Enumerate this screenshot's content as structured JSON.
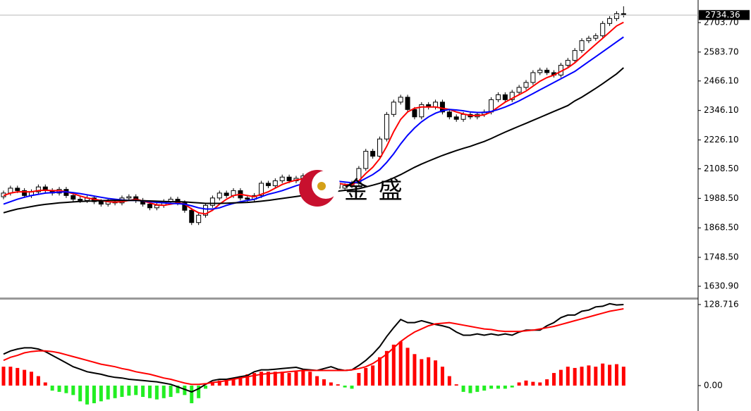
{
  "chart_data": [
    {
      "type": "candlestick",
      "watermark": "金 盛",
      "up_color": "#ffffff",
      "down_color": "#000000",
      "outline_color": "#000000",
      "ylim": [
        1588,
        2795.5
      ],
      "yticks": [
        {
          "value": 1630.9,
          "label": "1630.90"
        },
        {
          "value": 1748.5,
          "label": "1748.50"
        },
        {
          "value": 1868.5,
          "label": "1868.50"
        },
        {
          "value": 1988.5,
          "label": "1988.50"
        },
        {
          "value": 2108.5,
          "label": "2108.50"
        },
        {
          "value": 2226.1,
          "label": "2226.10"
        },
        {
          "value": 2346.1,
          "label": "2346.10"
        },
        {
          "value": 2466.1,
          "label": "2466.10"
        },
        {
          "value": 2583.7,
          "label": "2583.70"
        },
        {
          "value": 2703.7,
          "label": "2703.70"
        }
      ],
      "open": [
        1995,
        2010,
        2030,
        2020,
        2000,
        2015,
        2035,
        2020,
        2010,
        2025,
        2000,
        1985,
        1980,
        1990,
        1975,
        1965,
        1975,
        1970,
        1990,
        1995,
        1980,
        1965,
        1950,
        1960,
        1975,
        1985,
        1970,
        1940,
        1890,
        1920,
        1960,
        1990,
        2010,
        2000,
        2020,
        1990,
        1985,
        2000,
        2050,
        2040,
        2060,
        2075,
        2060,
        2070,
        2080,
        2055,
        2040,
        2060,
        2050,
        2030,
        2040,
        2050,
        2110,
        2180,
        2160,
        2230,
        2330,
        2380,
        2400,
        2350,
        2320,
        2370,
        2360,
        2380,
        2340,
        2320,
        2310,
        2330,
        2320,
        2330,
        2340,
        2390,
        2410,
        2390,
        2420,
        2440,
        2460,
        2500,
        2510,
        2500,
        2490,
        2530,
        2550,
        2590,
        2630,
        2640,
        2650,
        2700,
        2720,
        2740
      ],
      "high": [
        2020,
        2040,
        2040,
        2030,
        2025,
        2045,
        2045,
        2030,
        2035,
        2035,
        2010,
        1995,
        2000,
        2000,
        1985,
        1985,
        1985,
        2000,
        2005,
        2005,
        1990,
        1975,
        1970,
        1985,
        1995,
        1995,
        1980,
        1950,
        1930,
        1970,
        2000,
        2020,
        2020,
        2030,
        2030,
        2000,
        2010,
        2060,
        2060,
        2070,
        2085,
        2085,
        2080,
        2090,
        2090,
        2065,
        2070,
        2070,
        2060,
        2050,
        2060,
        2120,
        2190,
        2190,
        2240,
        2340,
        2390,
        2410,
        2410,
        2360,
        2380,
        2380,
        2390,
        2390,
        2350,
        2330,
        2340,
        2340,
        2340,
        2350,
        2400,
        2420,
        2420,
        2430,
        2450,
        2470,
        2510,
        2520,
        2520,
        2510,
        2540,
        2560,
        2600,
        2640,
        2650,
        2660,
        2710,
        2730,
        2750,
        2770
      ],
      "low": [
        1985,
        2000,
        2010,
        1990,
        1990,
        2005,
        2010,
        2000,
        2000,
        1990,
        1975,
        1970,
        1970,
        1965,
        1955,
        1955,
        1960,
        1960,
        1980,
        1970,
        1955,
        1940,
        1940,
        1950,
        1965,
        1960,
        1930,
        1880,
        1880,
        1910,
        1950,
        1980,
        1990,
        1990,
        1980,
        1975,
        1975,
        1990,
        2030,
        2030,
        2050,
        2050,
        2050,
        2060,
        2045,
        2030,
        2030,
        2040,
        2020,
        2020,
        2030,
        2040,
        2100,
        2150,
        2150,
        2220,
        2320,
        2370,
        2340,
        2310,
        2310,
        2350,
        2350,
        2330,
        2310,
        2300,
        2300,
        2310,
        2310,
        2320,
        2330,
        2380,
        2380,
        2380,
        2410,
        2430,
        2450,
        2490,
        2490,
        2480,
        2480,
        2520,
        2540,
        2580,
        2620,
        2630,
        2640,
        2690,
        2710,
        2725
      ],
      "close": [
        2010,
        2030,
        2020,
        2000,
        2015,
        2035,
        2020,
        2010,
        2025,
        2000,
        1985,
        1980,
        1990,
        1975,
        1965,
        1975,
        1970,
        1990,
        1995,
        1980,
        1965,
        1950,
        1960,
        1975,
        1985,
        1970,
        1940,
        1890,
        1920,
        1960,
        1990,
        2010,
        2000,
        2020,
        1990,
        1985,
        2000,
        2050,
        2040,
        2060,
        2075,
        2060,
        2070,
        2080,
        2055,
        2040,
        2060,
        2050,
        2030,
        2040,
        2050,
        2110,
        2180,
        2160,
        2230,
        2330,
        2380,
        2400,
        2350,
        2320,
        2370,
        2360,
        2380,
        2340,
        2320,
        2310,
        2330,
        2320,
        2330,
        2340,
        2390,
        2410,
        2390,
        2420,
        2440,
        2460,
        2500,
        2510,
        2500,
        2490,
        2530,
        2550,
        2590,
        2630,
        2640,
        2650,
        2700,
        2720,
        2740,
        2734.36
      ],
      "series": [
        {
          "color": "#ff0000",
          "values": [
            2000,
            2010,
            2015,
            2015,
            2015,
            2020,
            2022,
            2020,
            2020,
            2015,
            2008,
            1998,
            1990,
            1985,
            1980,
            1975,
            1973,
            1975,
            1980,
            1985,
            1978,
            1970,
            1962,
            1960,
            1965,
            1970,
            1965,
            1945,
            1930,
            1925,
            1940,
            1965,
            1985,
            2000,
            2005,
            2000,
            1995,
            2005,
            2015,
            2030,
            2045,
            2055,
            2063,
            2068,
            2065,
            2060,
            2058,
            2055,
            2050,
            2045,
            2043,
            2060,
            2090,
            2115,
            2150,
            2200,
            2260,
            2310,
            2340,
            2355,
            2360,
            2360,
            2360,
            2355,
            2350,
            2340,
            2332,
            2326,
            2325,
            2328,
            2340,
            2360,
            2380,
            2395,
            2410,
            2425,
            2445,
            2465,
            2480,
            2490,
            2505,
            2520,
            2540,
            2565,
            2590,
            2615,
            2640,
            2665,
            2690,
            2705
          ]
        },
        {
          "color": "#0000ff",
          "values": [
            1965,
            1975,
            1985,
            1993,
            2000,
            2005,
            2010,
            2012,
            2014,
            2015,
            2012,
            2008,
            2003,
            1998,
            1993,
            1988,
            1985,
            1982,
            1980,
            1980,
            1978,
            1975,
            1972,
            1970,
            1968,
            1967,
            1965,
            1958,
            1950,
            1945,
            1945,
            1950,
            1960,
            1968,
            1975,
            1980,
            1985,
            1995,
            2005,
            2012,
            2020,
            2030,
            2040,
            2048,
            2055,
            2058,
            2060,
            2060,
            2058,
            2055,
            2052,
            2055,
            2070,
            2085,
            2105,
            2135,
            2170,
            2210,
            2245,
            2275,
            2300,
            2320,
            2335,
            2345,
            2350,
            2348,
            2345,
            2340,
            2338,
            2338,
            2342,
            2350,
            2360,
            2372,
            2385,
            2400,
            2415,
            2430,
            2445,
            2460,
            2475,
            2490,
            2505,
            2525,
            2545,
            2565,
            2585,
            2605,
            2625,
            2645
          ]
        },
        {
          "color": "#000000",
          "values": [
            1930,
            1938,
            1945,
            1950,
            1955,
            1960,
            1964,
            1967,
            1970,
            1972,
            1974,
            1976,
            1977,
            1978,
            1979,
            1980,
            1980,
            1980,
            1980,
            1980,
            1979,
            1978,
            1977,
            1976,
            1975,
            1975,
            1974,
            1972,
            1970,
            1968,
            1968,
            1968,
            1969,
            1970,
            1971,
            1972,
            1974,
            1977,
            1980,
            1984,
            1988,
            1992,
            1996,
            2000,
            2004,
            2008,
            2012,
            2015,
            2018,
            2021,
            2024,
            2028,
            2035,
            2042,
            2050,
            2060,
            2072,
            2085,
            2100,
            2115,
            2128,
            2140,
            2152,
            2163,
            2173,
            2183,
            2192,
            2200,
            2210,
            2220,
            2232,
            2245,
            2258,
            2270,
            2282,
            2294,
            2306,
            2318,
            2330,
            2342,
            2354,
            2366,
            2385,
            2400,
            2418,
            2436,
            2455,
            2475,
            2495,
            2520
          ]
        }
      ]
    },
    {
      "type": "macd",
      "positive_color": "#ff0000",
      "negative_color": "#22ee22",
      "ylim": [
        -37,
        135.4
      ],
      "yticks": [
        128.716,
        {
          "value": 0,
          "label": "0.00"
        }
      ],
      "values": [
        30,
        30,
        28,
        25,
        22,
        15,
        5,
        -8,
        -10,
        -12,
        -15,
        -25,
        -30,
        -28,
        -25,
        -22,
        -20,
        -18,
        -16,
        -15,
        -18,
        -20,
        -22,
        -20,
        -18,
        -12,
        -15,
        -28,
        -20,
        -5,
        5,
        8,
        10,
        12,
        15,
        18,
        20,
        22,
        22,
        22,
        22,
        20,
        22,
        25,
        22,
        15,
        10,
        5,
        2,
        -3,
        -5,
        20,
        28,
        32,
        45,
        55,
        65,
        70,
        60,
        50,
        42,
        45,
        40,
        30,
        15,
        2,
        -10,
        -12,
        -10,
        -8,
        -5,
        -5,
        -5,
        -3,
        5,
        8,
        6,
        5,
        10,
        20,
        25,
        30,
        28,
        30,
        32,
        30,
        35,
        33,
        34,
        30
      ],
      "series": [
        {
          "color": "#000000",
          "values": [
            50,
            55,
            58,
            60,
            60,
            58,
            54,
            48,
            42,
            36,
            30,
            26,
            22,
            20,
            18,
            15,
            13,
            12,
            10,
            9,
            8,
            7,
            6,
            4,
            2,
            -2,
            -6,
            -10,
            -5,
            2,
            8,
            10,
            10,
            12,
            14,
            16,
            22,
            25,
            25,
            26,
            27,
            28,
            29,
            26,
            25,
            24,
            27,
            30,
            26,
            24,
            25,
            32,
            40,
            50,
            62,
            78,
            92,
            105,
            100,
            100,
            103,
            100,
            97,
            95,
            92,
            85,
            80,
            80,
            82,
            80,
            82,
            80,
            82,
            80,
            85,
            88,
            88,
            88,
            95,
            100,
            108,
            112,
            112,
            118,
            120,
            125,
            126,
            130,
            128,
            128.716
          ]
        },
        {
          "color": "#ff0000",
          "values": [
            40,
            45,
            48,
            52,
            54,
            55,
            55,
            54,
            52,
            49,
            46,
            43,
            40,
            37,
            34,
            32,
            30,
            27,
            25,
            22,
            20,
            18,
            15,
            12,
            10,
            7,
            4,
            2,
            2,
            3,
            5,
            6,
            8,
            10,
            12,
            14,
            16,
            18,
            19,
            20,
            21,
            22,
            23,
            24,
            24,
            24,
            24,
            24,
            24,
            24,
            25,
            27,
            30,
            35,
            42,
            50,
            60,
            70,
            78,
            85,
            90,
            95,
            98,
            99,
            100,
            98,
            96,
            94,
            92,
            90,
            89,
            87,
            86,
            86,
            86,
            87,
            88,
            90,
            92,
            94,
            97,
            100,
            103,
            106,
            109,
            112,
            115,
            118,
            120,
            122
          ]
        }
      ]
    }
  ]
}
